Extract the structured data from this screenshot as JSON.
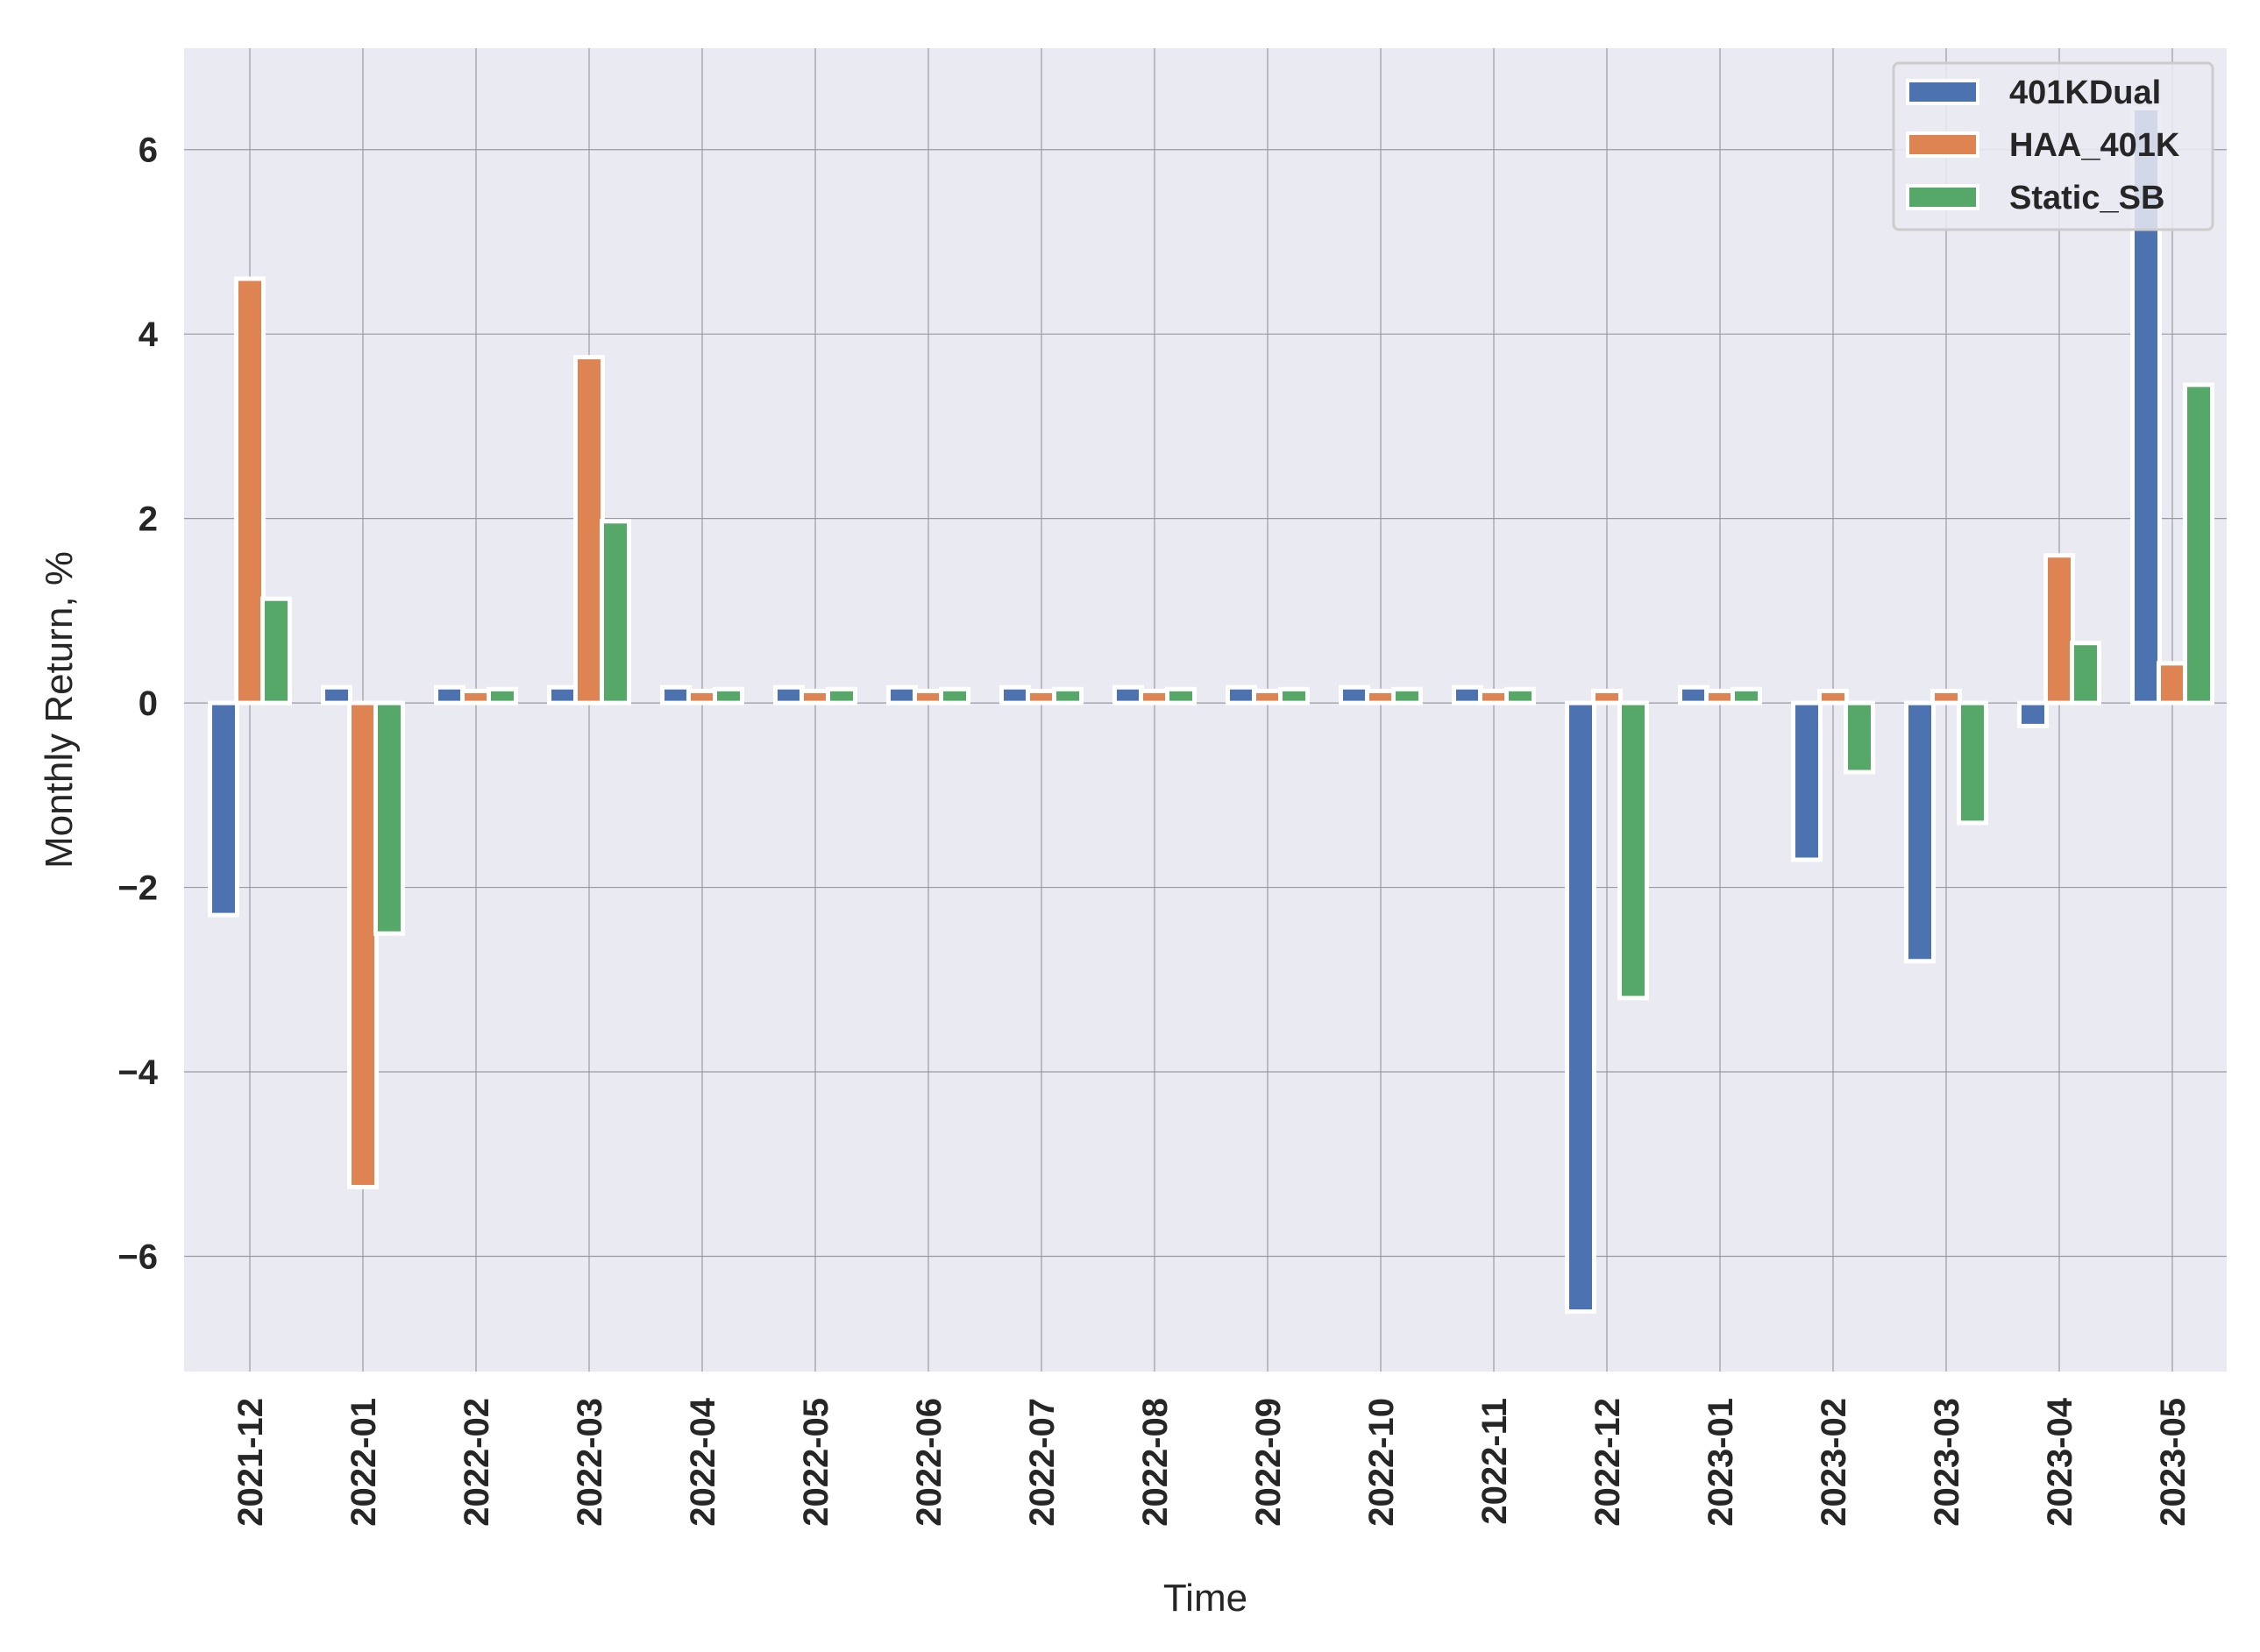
{
  "chart_data": {
    "type": "bar",
    "xlabel": "Time",
    "ylabel": "Monthly Return, %",
    "ylim": [
      -7.25,
      7.1
    ],
    "yticks": [
      6,
      4,
      2,
      0,
      -2,
      -4,
      -6
    ],
    "ytick_labels": [
      "6",
      "4",
      "2",
      "0",
      "−2",
      "−4",
      "−6"
    ],
    "grid": true,
    "legend_position": "top-right",
    "categories": [
      "2021-12",
      "2022-01",
      "2022-02",
      "2022-03",
      "2022-04",
      "2022-05",
      "2022-06",
      "2022-07",
      "2022-08",
      "2022-09",
      "2022-10",
      "2022-11",
      "2022-12",
      "2023-01",
      "2023-02",
      "2023-03",
      "2023-04",
      "2023-05"
    ],
    "series": [
      {
        "name": "401KDual",
        "color": "#4c72b0",
        "values": [
          -2.3,
          0.17,
          0.17,
          0.17,
          0.17,
          0.17,
          0.17,
          0.17,
          0.17,
          0.17,
          0.17,
          0.17,
          -6.6,
          0.17,
          -1.7,
          -2.8,
          -0.25,
          6.45
        ]
      },
      {
        "name": "HAA_401K",
        "color": "#dd8452",
        "values": [
          4.6,
          -5.25,
          0.13,
          3.75,
          0.13,
          0.13,
          0.13,
          0.13,
          0.13,
          0.13,
          0.13,
          0.13,
          0.13,
          0.13,
          0.13,
          0.13,
          1.6,
          0.43
        ]
      },
      {
        "name": "Static_SB",
        "color": "#55a868",
        "values": [
          1.13,
          -2.5,
          0.15,
          1.97,
          0.15,
          0.15,
          0.15,
          0.15,
          0.15,
          0.15,
          0.15,
          0.15,
          -3.2,
          0.15,
          -0.75,
          -1.3,
          0.65,
          3.45
        ]
      }
    ]
  },
  "colors": {
    "plot_background": "#eaeaf2",
    "grid": "#9a9aa2",
    "bar_edge": "#ffffff",
    "text": "#262626"
  }
}
